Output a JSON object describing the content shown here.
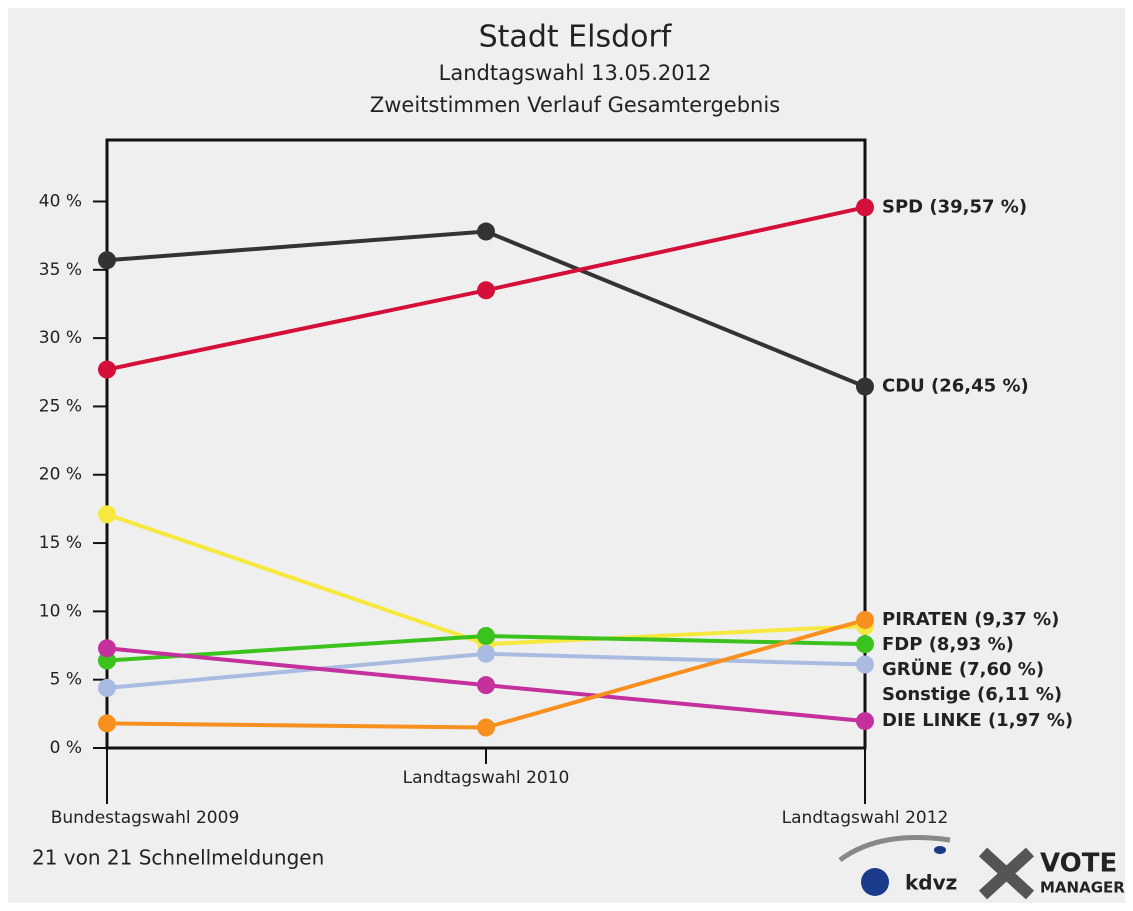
{
  "chart_data": {
    "type": "line",
    "title": "Stadt Elsdorf",
    "subtitle": [
      "Landtagswahl 13.05.2012",
      "Zweitstimmen Verlauf Gesamtergebnis"
    ],
    "categories": [
      "Bundestagswahl 2009",
      "Landtagswahl 2010",
      "Landtagswahl 2012"
    ],
    "ylim": [
      0,
      44.5
    ],
    "yticks": [
      {
        "value": 0,
        "label": "0 %"
      },
      {
        "value": 5,
        "label": "5 %"
      },
      {
        "value": 10,
        "label": "10 %"
      },
      {
        "value": 15,
        "label": "15 %"
      },
      {
        "value": 20,
        "label": "20 %"
      },
      {
        "value": 25,
        "label": "25 %"
      },
      {
        "value": 30,
        "label": "30 %"
      },
      {
        "value": 35,
        "label": "35 %"
      },
      {
        "value": 40,
        "label": "40 %"
      }
    ],
    "series": [
      {
        "name": "CDU (26,45 %)",
        "color": "#333333",
        "values": [
          35.7,
          37.8,
          26.45
        ]
      },
      {
        "name": "SPD (39,57 %)",
        "color": "#d4103a",
        "values": [
          27.7,
          33.5,
          39.57
        ]
      },
      {
        "name": "FDP (8,93 %)",
        "color": "#f6e83e",
        "values": [
          17.1,
          7.6,
          8.93
        ]
      },
      {
        "name": "GRÜNE (7,60 %)",
        "color": "#3cc21e",
        "values": [
          6.4,
          8.2,
          7.6
        ]
      },
      {
        "name": "Sonstige (6,11 %)",
        "color": "#aabbe2",
        "values": [
          4.4,
          6.9,
          6.11
        ]
      },
      {
        "name": "DIE LINKE (1,97 %)",
        "color": "#c4309c",
        "values": [
          7.3,
          4.6,
          1.97
        ]
      },
      {
        "name": "PIRATEN (9,37 %)",
        "color": "#f7901e",
        "values": [
          1.8,
          1.5,
          9.37
        ]
      }
    ]
  },
  "footer": {
    "status": "21 von 21 Schnellmeldungen",
    "logo1": "kdvz",
    "logo2": [
      "VOTE",
      "MANAGER"
    ]
  }
}
